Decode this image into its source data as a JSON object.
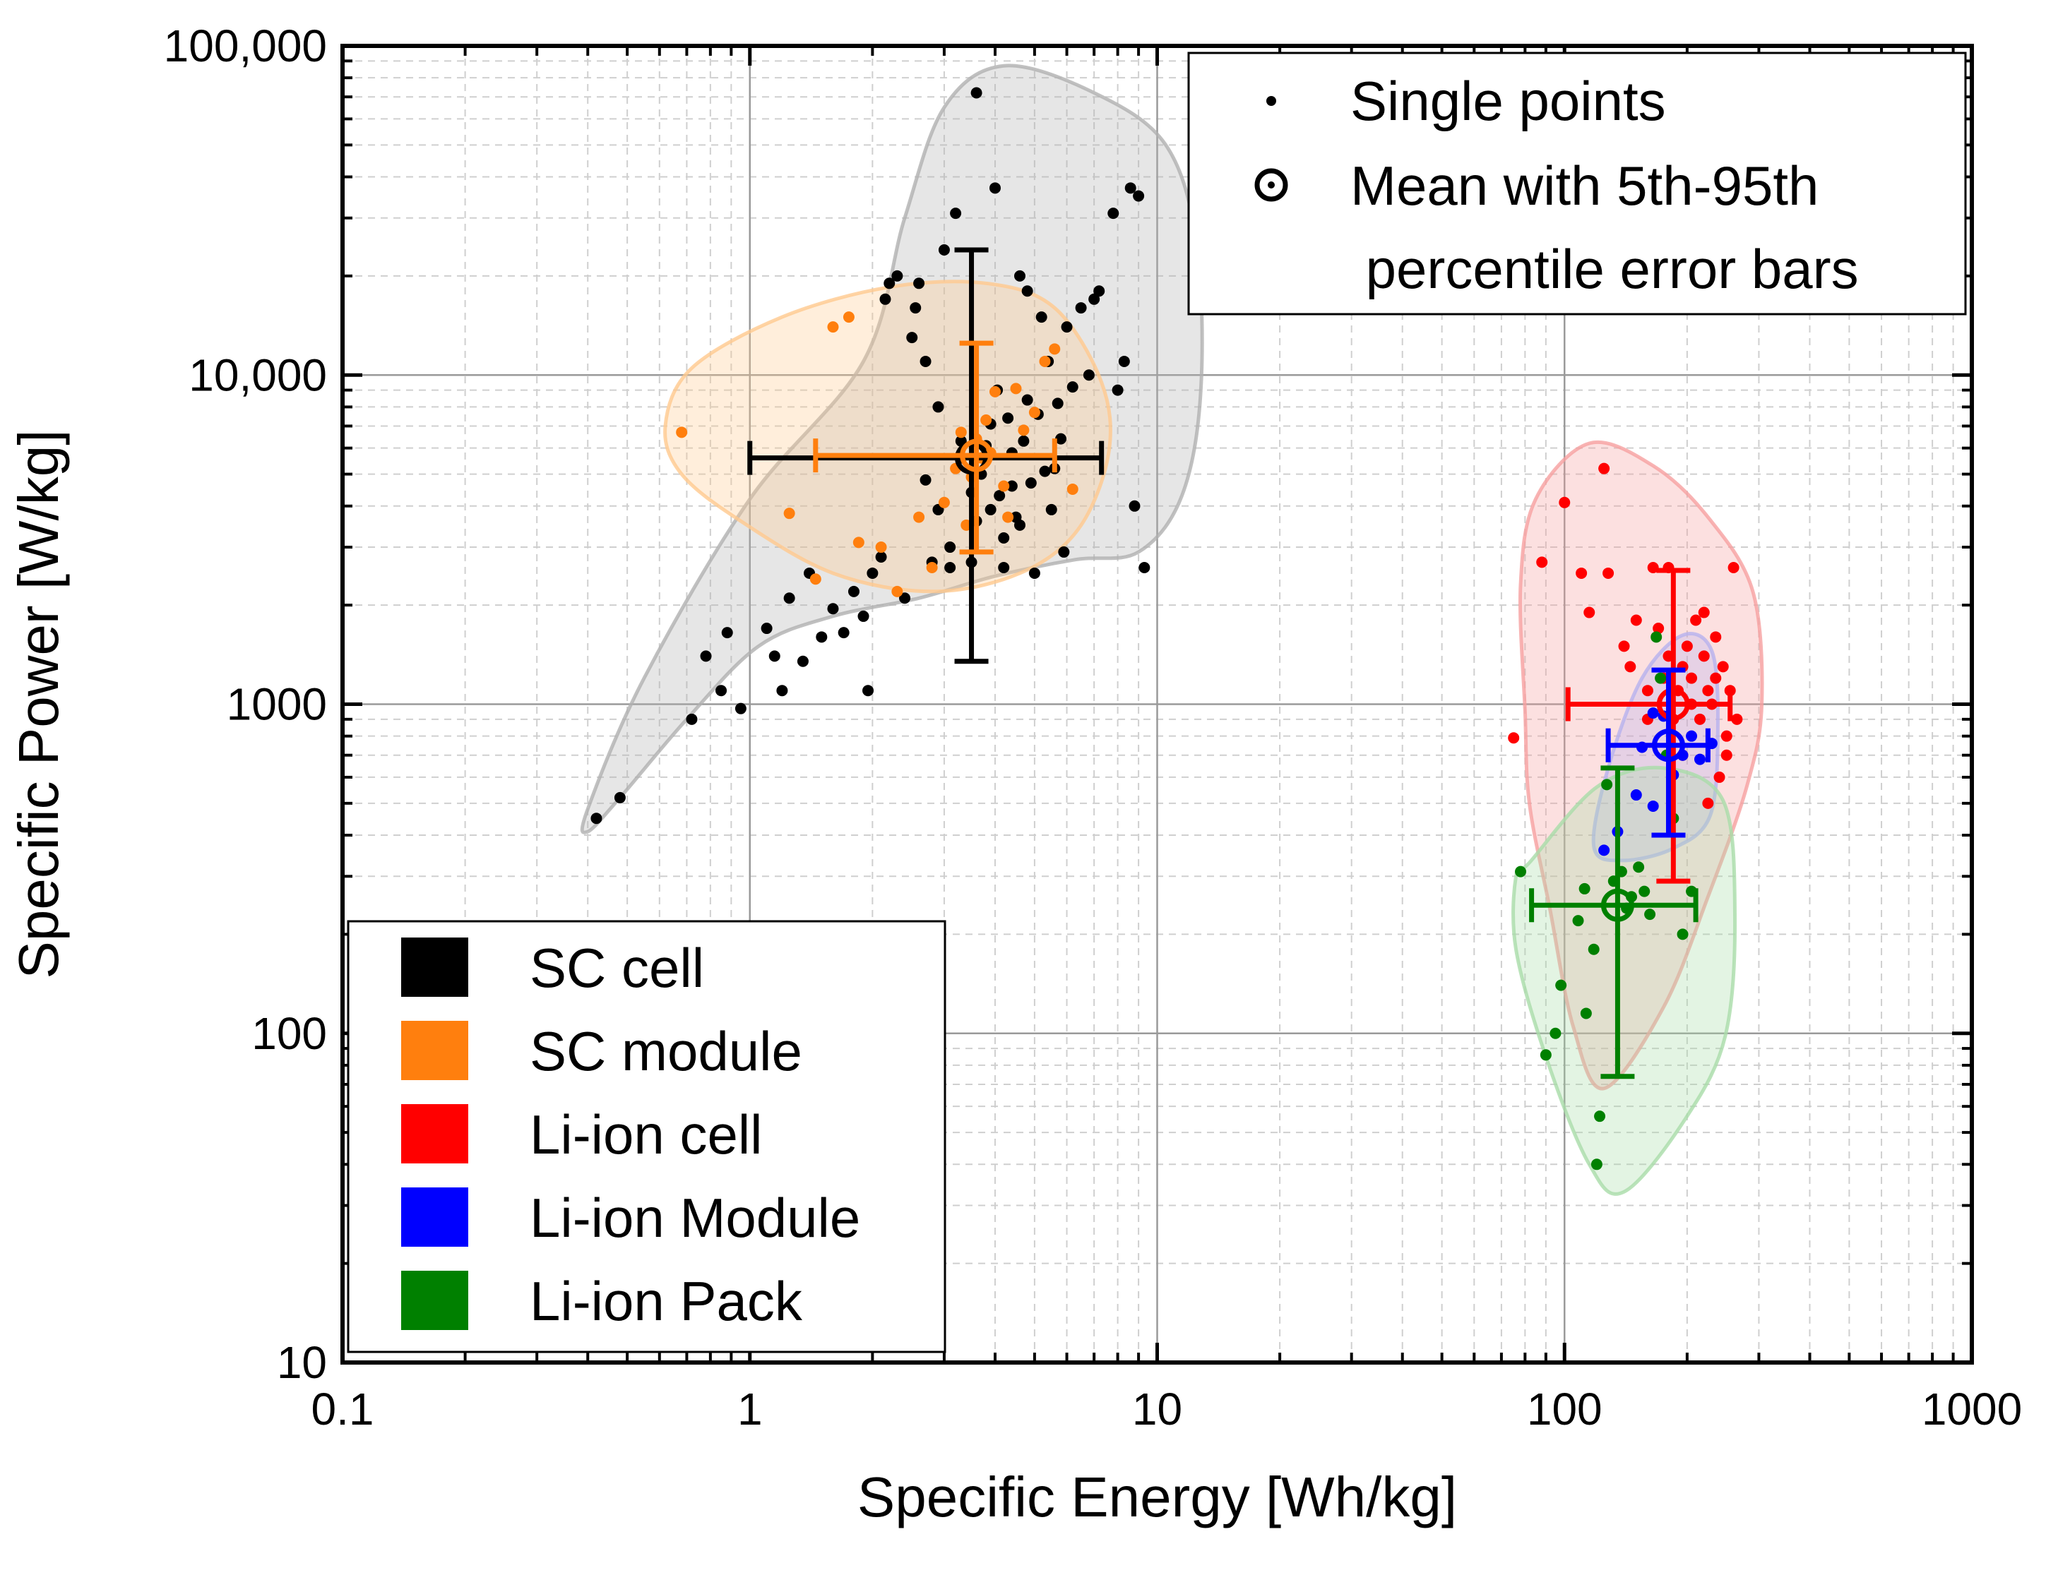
{
  "chart_data": {
    "type": "scatter",
    "xlabel": "Specific Energy [Wh/kg]",
    "ylabel": "Specific Power [W/kg]",
    "xscale": "log",
    "yscale": "log",
    "xlim": [
      0.1,
      1000
    ],
    "ylim": [
      10,
      100000
    ],
    "grid": true,
    "x_ticks": [
      {
        "value": 0.1,
        "label": "0.1"
      },
      {
        "value": 1,
        "label": "1"
      },
      {
        "value": 10,
        "label": "10"
      },
      {
        "value": 100,
        "label": "100"
      },
      {
        "value": 1000,
        "label": "1000"
      }
    ],
    "y_ticks": [
      {
        "value": 10,
        "label": "10"
      },
      {
        "value": 100,
        "label": "100"
      },
      {
        "value": 1000,
        "label": "1000"
      },
      {
        "value": 10000,
        "label": "10,000"
      },
      {
        "value": 100000,
        "label": "100,000"
      }
    ],
    "marker_legend": {
      "placement": "top-right",
      "items": [
        {
          "marker": "dot",
          "label": "Single points"
        },
        {
          "marker": "circle-dot",
          "label": "Mean with 5th-95th percentile error bars"
        }
      ]
    },
    "legend": {
      "placement": "bottom-left",
      "items": [
        {
          "label": "SC cell",
          "color": "#000000"
        },
        {
          "label": "SC module",
          "color": "#ff7f0e"
        },
        {
          "label": "Li-ion cell",
          "color": "#ff0000"
        },
        {
          "label": "Li-ion Module",
          "color": "#0000ff"
        },
        {
          "label": "Li-ion Pack",
          "color": "#008000"
        }
      ]
    },
    "series": [
      {
        "name": "SC cell",
        "color": "#000000",
        "points": [
          [
            0.42,
            450
          ],
          [
            0.48,
            520
          ],
          [
            0.72,
            900
          ],
          [
            0.78,
            1400
          ],
          [
            0.85,
            1100
          ],
          [
            0.88,
            1650
          ],
          [
            0.95,
            970
          ],
          [
            1.1,
            1700
          ],
          [
            1.15,
            1400
          ],
          [
            1.2,
            1100
          ],
          [
            1.25,
            2100
          ],
          [
            1.35,
            1350
          ],
          [
            1.4,
            2500
          ],
          [
            1.5,
            1600
          ],
          [
            1.6,
            1950
          ],
          [
            1.7,
            1650
          ],
          [
            1.8,
            2200
          ],
          [
            1.9,
            1850
          ],
          [
            1.95,
            1100
          ],
          [
            2.0,
            2500
          ],
          [
            2.1,
            2800
          ],
          [
            2.15,
            17000
          ],
          [
            2.2,
            19000
          ],
          [
            2.3,
            20000
          ],
          [
            2.4,
            2100
          ],
          [
            2.5,
            13000
          ],
          [
            2.55,
            16000
          ],
          [
            2.6,
            19000
          ],
          [
            2.7,
            11000
          ],
          [
            2.8,
            2700
          ],
          [
            2.9,
            8000
          ],
          [
            3.0,
            24000
          ],
          [
            3.1,
            2600
          ],
          [
            3.2,
            31000
          ],
          [
            3.3,
            5600
          ],
          [
            3.5,
            4400
          ],
          [
            3.6,
            3600
          ],
          [
            3.7,
            5000
          ],
          [
            3.8,
            6100
          ],
          [
            3.9,
            7100
          ],
          [
            4.0,
            37000
          ],
          [
            4.05,
            9000
          ],
          [
            4.1,
            4300
          ],
          [
            4.2,
            2600
          ],
          [
            4.3,
            7400
          ],
          [
            4.4,
            5800
          ],
          [
            4.5,
            3700
          ],
          [
            4.6,
            20000
          ],
          [
            4.7,
            6300
          ],
          [
            4.8,
            18000
          ],
          [
            4.9,
            4700
          ],
          [
            5.0,
            2500
          ],
          [
            5.1,
            7600
          ],
          [
            5.2,
            15000
          ],
          [
            5.3,
            5100
          ],
          [
            5.4,
            11000
          ],
          [
            5.5,
            3900
          ],
          [
            5.7,
            8200
          ],
          [
            5.8,
            6400
          ],
          [
            5.9,
            2900
          ],
          [
            6.0,
            14000
          ],
          [
            6.2,
            9200
          ],
          [
            6.5,
            16000
          ],
          [
            6.8,
            10000
          ],
          [
            7.0,
            17000
          ],
          [
            7.2,
            18000
          ],
          [
            3.6,
            72000
          ],
          [
            7.8,
            31000
          ],
          [
            8.0,
            9000
          ],
          [
            8.3,
            11000
          ],
          [
            8.6,
            37000
          ],
          [
            9.0,
            35000
          ],
          [
            9.3,
            2600
          ],
          [
            8.8,
            4000
          ],
          [
            3.5,
            2700
          ],
          [
            4.2,
            3200
          ],
          [
            4.6,
            3500
          ],
          [
            3.9,
            3900
          ],
          [
            4.4,
            4600
          ],
          [
            3.3,
            6300
          ],
          [
            4.8,
            8400
          ],
          [
            5.6,
            5200
          ],
          [
            2.7,
            4800
          ],
          [
            3.1,
            3000
          ],
          [
            2.9,
            3900
          ]
        ]
      },
      {
        "name": "SC module",
        "color": "#ff7f0e",
        "points": [
          [
            0.68,
            6700
          ],
          [
            1.25,
            3800
          ],
          [
            1.45,
            2400
          ],
          [
            1.6,
            14000
          ],
          [
            1.75,
            15000
          ],
          [
            1.85,
            3100
          ],
          [
            2.1,
            3000
          ],
          [
            2.3,
            2200
          ],
          [
            2.6,
            3700
          ],
          [
            2.8,
            2600
          ],
          [
            3.0,
            4100
          ],
          [
            3.2,
            5200
          ],
          [
            3.3,
            6700
          ],
          [
            3.4,
            3500
          ],
          [
            3.5,
            4900
          ],
          [
            3.6,
            6400
          ],
          [
            3.7,
            5600
          ],
          [
            3.8,
            7300
          ],
          [
            4.0,
            8900
          ],
          [
            4.2,
            4600
          ],
          [
            4.3,
            3700
          ],
          [
            4.5,
            9100
          ],
          [
            4.7,
            6800
          ],
          [
            5.0,
            7700
          ],
          [
            5.3,
            11000
          ],
          [
            5.6,
            12000
          ],
          [
            6.2,
            4500
          ],
          [
            3.9,
            5800
          ]
        ]
      },
      {
        "name": "Li-ion cell",
        "color": "#ff0000",
        "points": [
          [
            75,
            790
          ],
          [
            88,
            2700
          ],
          [
            100,
            4100
          ],
          [
            110,
            2500
          ],
          [
            115,
            1900
          ],
          [
            125,
            5200
          ],
          [
            128,
            2500
          ],
          [
            140,
            1500
          ],
          [
            150,
            1800
          ],
          [
            160,
            1100
          ],
          [
            165,
            2600
          ],
          [
            170,
            1700
          ],
          [
            175,
            1200
          ],
          [
            180,
            2600
          ],
          [
            185,
            900
          ],
          [
            190,
            1100
          ],
          [
            195,
            700
          ],
          [
            200,
            1500
          ],
          [
            205,
            1200
          ],
          [
            210,
            1800
          ],
          [
            215,
            900
          ],
          [
            220,
            1400
          ],
          [
            225,
            1100
          ],
          [
            230,
            1000
          ],
          [
            235,
            1600
          ],
          [
            240,
            600
          ],
          [
            245,
            1300
          ],
          [
            250,
            800
          ],
          [
            255,
            1100
          ],
          [
            260,
            2600
          ],
          [
            265,
            900
          ],
          [
            220,
            1900
          ],
          [
            180,
            1400
          ],
          [
            160,
            900
          ],
          [
            145,
            1300
          ],
          [
            195,
            1300
          ],
          [
            235,
            1200
          ],
          [
            250,
            700
          ],
          [
            205,
            1000
          ],
          [
            225,
            500
          ]
        ]
      },
      {
        "name": "Li-ion Module",
        "color": "#0000ff",
        "points": [
          [
            125,
            360
          ],
          [
            135,
            410
          ],
          [
            150,
            530
          ],
          [
            155,
            740
          ],
          [
            165,
            490
          ],
          [
            175,
            920
          ],
          [
            185,
            610
          ],
          [
            195,
            700
          ],
          [
            205,
            800
          ],
          [
            215,
            680
          ],
          [
            230,
            760
          ],
          [
            165,
            940
          ]
        ]
      },
      {
        "name": "Li-ion Pack",
        "color": "#008000",
        "points": [
          [
            78,
            310
          ],
          [
            90,
            86
          ],
          [
            95,
            100
          ],
          [
            98,
            140
          ],
          [
            108,
            220
          ],
          [
            113,
            115
          ],
          [
            120,
            40
          ],
          [
            122,
            56
          ],
          [
            127,
            570
          ],
          [
            132,
            290
          ],
          [
            138,
            310
          ],
          [
            142,
            240
          ],
          [
            146,
            260
          ],
          [
            152,
            320
          ],
          [
            157,
            270
          ],
          [
            162,
            230
          ],
          [
            168,
            1600
          ],
          [
            172,
            1200
          ],
          [
            178,
            700
          ],
          [
            185,
            450
          ],
          [
            195,
            200
          ],
          [
            205,
            270
          ],
          [
            112,
            275
          ],
          [
            118,
            180
          ]
        ]
      }
    ],
    "means": [
      {
        "name": "SC cell",
        "color": "#000000",
        "x": 3.5,
        "y": 5600,
        "x_range": [
          1.0,
          7.3
        ],
        "y_range": [
          1350,
          24000
        ]
      },
      {
        "name": "SC module",
        "color": "#ff7f0e",
        "x": 3.6,
        "y": 5700,
        "x_range": [
          1.45,
          5.6
        ],
        "y_range": [
          2900,
          12500
        ]
      },
      {
        "name": "Li-ion cell",
        "color": "#ff0000",
        "x": 185,
        "y": 1000,
        "x_range": [
          102,
          255
        ],
        "y_range": [
          290,
          2550
        ]
      },
      {
        "name": "Li-ion Module",
        "color": "#0000ff",
        "x": 180,
        "y": 750,
        "x_range": [
          128,
          225
        ],
        "y_range": [
          400,
          1270
        ]
      },
      {
        "name": "Li-ion Pack",
        "color": "#008000",
        "x": 135,
        "y": 245,
        "x_range": [
          83,
          210
        ],
        "y_range": [
          74,
          640
        ]
      }
    ],
    "regions": [
      {
        "name": "SC cell",
        "color": "#b0b0b0",
        "outline": [
          [
            0.4,
            410
          ],
          [
            0.48,
            520
          ],
          [
            0.7,
            900
          ],
          [
            1.05,
            1500
          ],
          [
            1.6,
            1850
          ],
          [
            2.6,
            2100
          ],
          [
            4.0,
            2450
          ],
          [
            6.3,
            2750
          ],
          [
            9.0,
            2900
          ],
          [
            11.5,
            4300
          ],
          [
            12.8,
            9000
          ],
          [
            12.5,
            25000
          ],
          [
            10.5,
            50000
          ],
          [
            7.0,
            72000
          ],
          [
            4.2,
            87000
          ],
          [
            3.0,
            65000
          ],
          [
            2.4,
            30000
          ],
          [
            1.9,
            11000
          ],
          [
            1.0,
            4200
          ],
          [
            0.55,
            1200
          ],
          [
            0.4,
            480
          ]
        ]
      },
      {
        "name": "SC module",
        "color": "#ffc98f",
        "outline": [
          [
            0.62,
            7000
          ],
          [
            0.72,
            10500
          ],
          [
            1.2,
            15000
          ],
          [
            2.2,
            18500
          ],
          [
            3.8,
            19000
          ],
          [
            5.6,
            16000
          ],
          [
            7.3,
            9500
          ],
          [
            7.6,
            5800
          ],
          [
            6.4,
            3400
          ],
          [
            4.6,
            2500
          ],
          [
            2.8,
            2200
          ],
          [
            1.6,
            2500
          ],
          [
            0.95,
            3600
          ],
          [
            0.68,
            5000
          ]
        ]
      },
      {
        "name": "Li-ion cell",
        "color": "#f6a0a0",
        "outline": [
          [
            80,
            950
          ],
          [
            78,
            2300
          ],
          [
            85,
            4200
          ],
          [
            115,
            6200
          ],
          [
            165,
            5300
          ],
          [
            225,
            3700
          ],
          [
            290,
            2200
          ],
          [
            305,
            1000
          ],
          [
            280,
            560
          ],
          [
            225,
            260
          ],
          [
            175,
            120
          ],
          [
            125,
            68
          ],
          [
            105,
            105
          ],
          [
            92,
            240
          ],
          [
            82,
            500
          ]
        ]
      },
      {
        "name": "Li-ion Module",
        "color": "#b7b1ee",
        "outline": [
          [
            118,
            370
          ],
          [
            128,
            640
          ],
          [
            155,
            1200
          ],
          [
            195,
            1620
          ],
          [
            230,
            1450
          ],
          [
            238,
            850
          ],
          [
            228,
            460
          ],
          [
            185,
            365
          ],
          [
            138,
            335
          ]
        ]
      },
      {
        "name": "Li-ion Pack",
        "color": "#a9dca9",
        "outline": [
          [
            76,
            300
          ],
          [
            82,
            330
          ],
          [
            120,
            560
          ],
          [
            175,
            640
          ],
          [
            245,
            510
          ],
          [
            262,
            230
          ],
          [
            248,
            98
          ],
          [
            198,
            55
          ],
          [
            140,
            33
          ],
          [
            115,
            40
          ],
          [
            90,
            85
          ],
          [
            76,
            180
          ]
        ]
      }
    ]
  }
}
